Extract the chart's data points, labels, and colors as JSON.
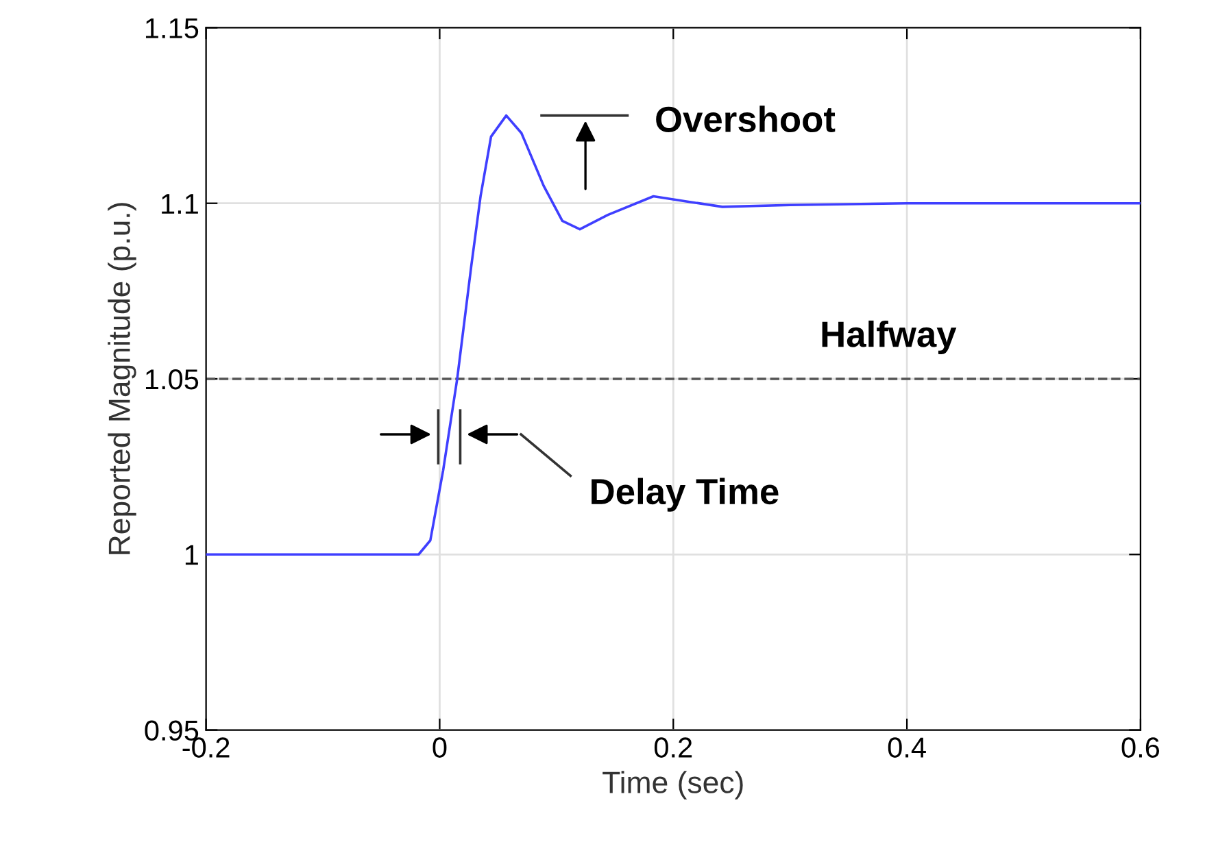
{
  "chart_data": {
    "type": "line",
    "xlabel": "Time (sec)",
    "ylabel": "Reported Magnitude (p.u.)",
    "x": [
      -0.2,
      -0.1,
      -0.018,
      -0.008,
      0.003,
      0.015,
      0.027,
      0.035,
      0.044,
      0.057,
      0.07,
      0.089,
      0.105,
      0.12,
      0.144,
      0.183,
      0.214,
      0.242,
      0.3,
      0.4,
      0.5,
      0.6
    ],
    "series": [
      {
        "color": "#3f3fff",
        "values": [
          1.0,
          1.0,
          1.0,
          1.004,
          1.024,
          1.05,
          1.082,
          1.102,
          1.119,
          1.125,
          1.12,
          1.105,
          1.095,
          1.0926,
          1.0967,
          1.102,
          1.1004,
          1.099,
          1.0995,
          1.1,
          1.1,
          1.1
        ]
      }
    ],
    "xlim": [
      -0.2,
      0.6
    ],
    "ylim": [
      0.95,
      1.15
    ],
    "xticks": [
      -0.2,
      0,
      0.2,
      0.4,
      0.6
    ],
    "yticks": [
      0.95,
      1,
      1.05,
      1.1,
      1.15
    ],
    "grid": true,
    "marker": "none",
    "line_style": "solid",
    "ref_lines": [
      {
        "axis": "y",
        "value": 1.05,
        "label": "Halfway",
        "color": "#555555",
        "line_style": "dashed"
      }
    ],
    "annotations": [
      "Overshoot",
      "Delay Time"
    ]
  }
}
